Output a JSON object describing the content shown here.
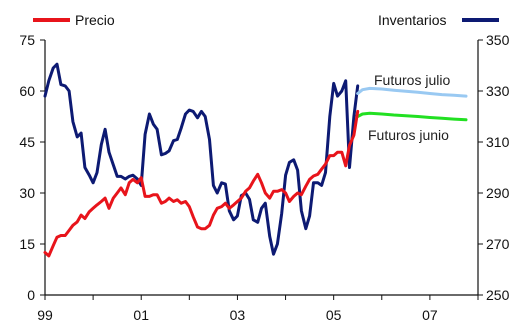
{
  "chart_data": {
    "type": "line",
    "legend": {
      "precio_label": "Precio",
      "inventarios_label": "Inventarios"
    },
    "x_axis": {
      "ticks": [
        "99",
        "01",
        "03",
        "05",
        "07"
      ],
      "range": [
        1999,
        2008
      ]
    },
    "y_left": {
      "ticks": [
        "0",
        "15",
        "30",
        "45",
        "60",
        "75"
      ],
      "range": [
        0,
        75
      ]
    },
    "y_right": {
      "ticks": [
        "250",
        "270",
        "290",
        "310",
        "330",
        "350"
      ],
      "range": [
        250,
        350
      ]
    },
    "annotations": {
      "futuros_julio": "Futuros julio",
      "futuros_junio": "Futuros junio"
    },
    "colors": {
      "precio": "#e8141b",
      "inventarios": "#0d1a73",
      "futuros_julio": "#99c9f2",
      "futuros_junio": "#22e022"
    },
    "series": [
      {
        "name": "Precio",
        "axis": "left",
        "x": [
          1999.0,
          1999.08,
          1999.17,
          1999.25,
          1999.33,
          1999.42,
          1999.5,
          1999.58,
          1999.67,
          1999.75,
          1999.83,
          1999.92,
          2000.0,
          2000.08,
          2000.17,
          2000.25,
          2000.33,
          2000.42,
          2000.5,
          2000.58,
          2000.67,
          2000.75,
          2000.83,
          2000.92,
          2001.0,
          2001.08,
          2001.17,
          2001.25,
          2001.33,
          2001.42,
          2001.5,
          2001.58,
          2001.67,
          2001.75,
          2001.83,
          2001.92,
          2002.0,
          2002.08,
          2002.17,
          2002.25,
          2002.33,
          2002.42,
          2002.5,
          2002.58,
          2002.67,
          2002.75,
          2002.83,
          2002.92,
          2003.0,
          2003.08,
          2003.17,
          2003.25,
          2003.33,
          2003.42,
          2003.5,
          2003.58,
          2003.67,
          2003.75,
          2003.83,
          2003.92,
          2004.0,
          2004.08,
          2004.17,
          2004.25,
          2004.33,
          2004.42,
          2004.5,
          2004.58,
          2004.67,
          2004.75,
          2004.83,
          2004.92,
          2005.0,
          2005.08,
          2005.17,
          2005.25,
          2005.33,
          2005.42,
          2005.5
        ],
        "values": [
          12.5,
          11.5,
          14.5,
          17,
          17.5,
          17.5,
          19,
          20.5,
          21.5,
          23.5,
          22.5,
          24.5,
          25.5,
          26.5,
          27.5,
          28.5,
          25.5,
          28.5,
          30,
          31.5,
          29.5,
          33,
          34,
          33,
          34.5,
          29,
          29,
          29.5,
          29.5,
          27,
          27.5,
          28.5,
          27.5,
          28,
          27,
          27.5,
          26,
          23,
          20,
          19.5,
          19.5,
          20.5,
          23.5,
          25.5,
          26,
          27,
          25.5,
          26.5,
          27.5,
          28.5,
          30.5,
          31.5,
          33.5,
          35.5,
          33,
          30,
          28.5,
          30.5,
          30.5,
          31,
          30,
          27.5,
          29,
          30,
          29.5,
          32,
          34,
          35,
          35.5,
          37,
          38.5,
          41,
          41,
          42,
          42,
          38,
          44,
          47,
          54
        ]
      },
      {
        "name": "Inventarios",
        "axis": "right",
        "x": [
          1999.0,
          1999.08,
          1999.17,
          1999.25,
          1999.33,
          1999.42,
          1999.5,
          1999.58,
          1999.67,
          1999.75,
          1999.83,
          1999.92,
          2000.0,
          2000.08,
          2000.17,
          2000.25,
          2000.33,
          2000.42,
          2000.5,
          2000.58,
          2000.67,
          2000.75,
          2000.83,
          2000.92,
          2001.0,
          2001.08,
          2001.17,
          2001.25,
          2001.33,
          2001.42,
          2001.5,
          2001.58,
          2001.67,
          2001.75,
          2001.83,
          2001.92,
          2002.0,
          2002.08,
          2002.17,
          2002.25,
          2002.33,
          2002.42,
          2002.5,
          2002.58,
          2002.67,
          2002.75,
          2002.83,
          2002.92,
          2003.0,
          2003.08,
          2003.17,
          2003.25,
          2003.33,
          2003.42,
          2003.5,
          2003.58,
          2003.67,
          2003.75,
          2003.83,
          2003.92,
          2004.0,
          2004.08,
          2004.17,
          2004.25,
          2004.33,
          2004.42,
          2004.5,
          2004.58,
          2004.67,
          2004.75,
          2004.83,
          2004.92,
          2005.0,
          2005.08,
          2005.17,
          2005.25,
          2005.33,
          2005.42,
          2005.5
        ],
        "values": [
          328,
          334,
          339,
          340.5,
          332.5,
          332,
          330,
          318,
          312,
          313.5,
          300,
          297,
          294,
          298,
          309,
          315,
          306,
          301,
          296.5,
          296.5,
          295.5,
          296.5,
          297,
          295.5,
          293,
          313,
          321,
          317,
          315,
          305,
          305.5,
          306.5,
          310.5,
          311,
          315.5,
          321,
          322.5,
          322,
          319.5,
          322,
          320,
          311,
          293,
          290,
          294,
          293.5,
          283,
          279.5,
          281,
          289,
          290,
          287.5,
          279.5,
          278.5,
          284,
          286,
          273,
          266,
          270,
          282,
          297,
          302,
          303,
          299,
          283,
          276,
          281,
          294,
          294,
          293,
          298,
          320,
          333,
          328,
          330,
          334,
          300,
          320,
          332
        ]
      },
      {
        "name": "Futuros julio",
        "axis": "right",
        "x": [
          2005.5,
          2005.6,
          2005.75,
          2006.0,
          2006.25,
          2006.5,
          2006.75,
          2007.0,
          2007.25,
          2007.5,
          2007.75
        ],
        "values": [
          329,
          330.5,
          331,
          330.8,
          330.3,
          329.9,
          329.5,
          329,
          328.6,
          328.3,
          328
        ]
      },
      {
        "name": "Futuros junio",
        "axis": "right",
        "x": [
          2005.5,
          2005.6,
          2005.75,
          2006.0,
          2006.25,
          2006.5,
          2006.75,
          2007.0,
          2007.25,
          2007.5,
          2007.75
        ],
        "values": [
          320,
          321,
          321.3,
          321,
          320.6,
          320.3,
          320,
          319.6,
          319.3,
          319,
          318.7
        ]
      }
    ]
  }
}
